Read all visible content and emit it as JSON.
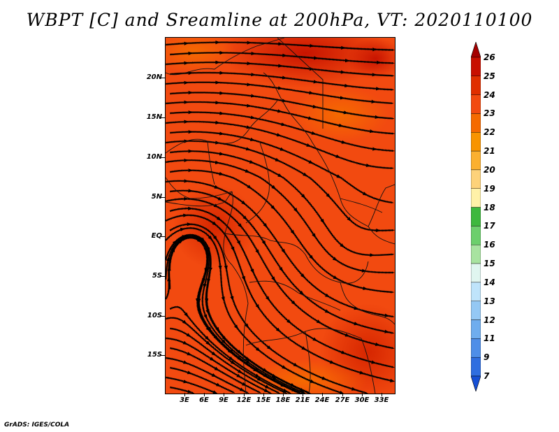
{
  "title": "WBPT [C] and Sreamline at 200hPa, VT: 2020110100",
  "map": {
    "lat_labels": [
      "20N",
      "15N",
      "10N",
      "5N",
      "EQ",
      "5S",
      "10S",
      "15S"
    ],
    "lon_labels": [
      "3E",
      "6E",
      "9E",
      "12E",
      "15E",
      "18E",
      "21E",
      "24E",
      "27E",
      "30E",
      "33E"
    ],
    "lat_range": [
      -20,
      24.5
    ],
    "lon_range": [
      0,
      35
    ],
    "field": "WBPT",
    "units": "C",
    "level": "200hPa",
    "valid_time": "2020110100"
  },
  "colorbar": {
    "labels": [
      "26",
      "25",
      "24",
      "23",
      "22",
      "21",
      "20",
      "19",
      "18",
      "17",
      "16",
      "15",
      "14",
      "13",
      "12",
      "11",
      "9",
      "7"
    ],
    "colors": [
      "#a50000",
      "#c80f00",
      "#e02f00",
      "#f24a10",
      "#f56a00",
      "#f89400",
      "#fbb030",
      "#fdd27a",
      "#fff1a8",
      "#3db83d",
      "#6ccf6c",
      "#a8e3a0",
      "#e0f6f0",
      "#bfe4fb",
      "#94c8f4",
      "#6fadee",
      "#4e8ee8",
      "#2f6ee0",
      "#1650d6"
    ]
  },
  "footer": "GrADS: IGES/COLA"
}
